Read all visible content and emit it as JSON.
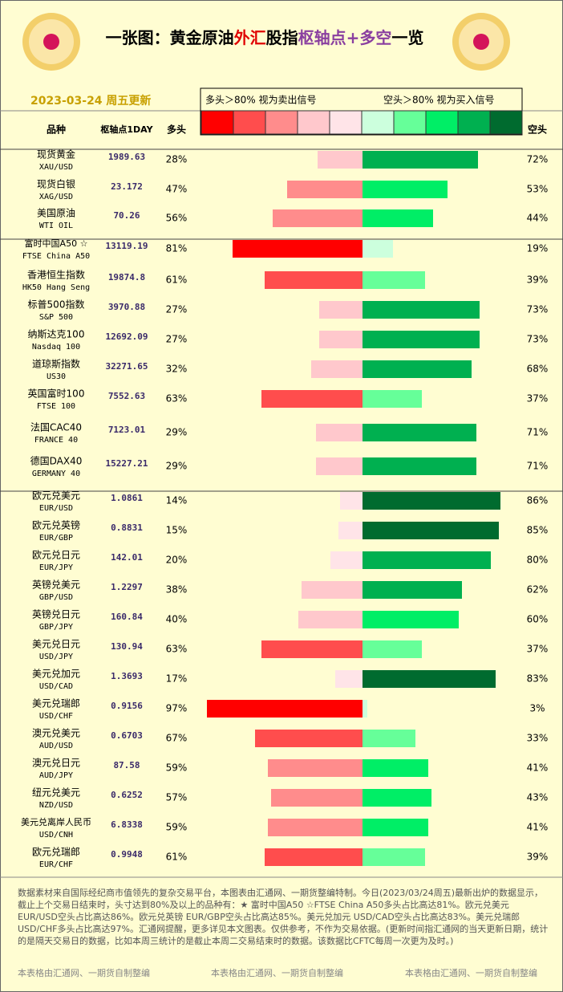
{
  "header": {
    "title_parts": [
      {
        "text": "一张图：黄金原油",
        "color": "#000000"
      },
      {
        "text": "外汇",
        "color": "#e00000"
      },
      {
        "text": "股指",
        "color": "#000000"
      },
      {
        "text": "枢轴点+多空",
        "color": "#8a3fa0"
      },
      {
        "text": "一览",
        "color": "#000000"
      }
    ],
    "date": "2023-03-24 周五更新"
  },
  "legend": {
    "long_text": "多头＞80% 视为卖出信号",
    "short_text": "空头＞80% 视为买入信号",
    "long_colors": [
      "#ffe4e8",
      "#ffc8cc",
      "#ff8c8c",
      "#ff4d4d",
      "#ff0000"
    ],
    "short_colors": [
      "#ccffdd",
      "#66ff99",
      "#00ee66",
      "#00b050",
      "#006b2f"
    ]
  },
  "columns": {
    "name": "品种",
    "pivot": "枢轴点1DAY",
    "long": "多头",
    "short": "空头"
  },
  "groups": [
    {
      "rows": [
        {
          "name": "现货黄金",
          "code": "XAU/USD",
          "pivot": "1989.63",
          "long": 28,
          "long_label": "28%",
          "short": 72,
          "short_label": "72%"
        },
        {
          "name": "现货白银",
          "code": "XAG/USD",
          "pivot": "23.172",
          "long": 47,
          "long_label": "47%",
          "short": 53,
          "short_label": "53%"
        },
        {
          "name": "美国原油",
          "code": "WTI OIL",
          "pivot": "70.26",
          "long": 56,
          "long_label": "56%",
          "short": 44,
          "short_label": "44%"
        }
      ]
    },
    {
      "rows": [
        {
          "name": "富时中国A50 ☆",
          "code": "FTSE China A50",
          "pivot": "13119.19",
          "long": 81,
          "long_label": "81%",
          "short": 19,
          "short_label": "19%"
        },
        {
          "name": "香港恒生指数",
          "code": "HK50 Hang Seng",
          "pivot": "19874.8",
          "long": 61,
          "long_label": "61%",
          "short": 39,
          "short_label": "39%"
        },
        {
          "name": "标普500指数",
          "code": "S&P 500",
          "pivot": "3970.88",
          "long": 27,
          "long_label": "27%",
          "short": 73,
          "short_label": "73%"
        },
        {
          "name": "纳斯达克100",
          "code": "Nasdaq 100",
          "pivot": "12692.09",
          "long": 27,
          "long_label": "27%",
          "short": 73,
          "short_label": "73%"
        },
        {
          "name": "道琼斯指数",
          "code": "US30",
          "pivot": "32271.65",
          "long": 32,
          "long_label": "32%",
          "short": 68,
          "short_label": "68%"
        },
        {
          "name": "英国富时100",
          "code": "FTSE 100",
          "pivot": "7552.63",
          "long": 63,
          "long_label": "63%",
          "short": 37,
          "short_label": "37%"
        },
        {
          "name": "法国CAC40",
          "code": "FRANCE 40",
          "pivot": "7123.01",
          "long": 29,
          "long_label": "29%",
          "short": 71,
          "short_label": "71%"
        },
        {
          "name": "德国DAX40",
          "code": "GERMANY 40",
          "pivot": "15227.21",
          "long": 29,
          "long_label": "29%",
          "short": 71,
          "short_label": "71%"
        }
      ]
    },
    {
      "rows": [
        {
          "name": "欧元兑美元",
          "code": "EUR/USD",
          "pivot": "1.0861",
          "long": 14,
          "long_label": "14%",
          "short": 86,
          "short_label": "86%"
        },
        {
          "name": "欧元兑英镑",
          "code": "EUR/GBP",
          "pivot": "0.8831",
          "long": 15,
          "long_label": "15%",
          "short": 85,
          "short_label": "85%"
        },
        {
          "name": "欧元兑日元",
          "code": "EUR/JPY",
          "pivot": "142.01",
          "long": 20,
          "long_label": "20%",
          "short": 80,
          "short_label": "80%"
        },
        {
          "name": "英镑兑美元",
          "code": "GBP/USD",
          "pivot": "1.2297",
          "long": 38,
          "long_label": "38%",
          "short": 62,
          "short_label": "62%"
        },
        {
          "name": "英镑兑日元",
          "code": "GBP/JPY",
          "pivot": "160.84",
          "long": 40,
          "long_label": "40%",
          "short": 60,
          "short_label": "60%"
        },
        {
          "name": "美元兑日元",
          "code": "USD/JPY",
          "pivot": "130.94",
          "long": 63,
          "long_label": "63%",
          "short": 37,
          "short_label": "37%"
        },
        {
          "name": "美元兑加元",
          "code": "USD/CAD",
          "pivot": "1.3693",
          "long": 17,
          "long_label": "17%",
          "short": 83,
          "short_label": "83%"
        },
        {
          "name": "美元兑瑞郎",
          "code": "USD/CHF",
          "pivot": "0.9156",
          "long": 97,
          "long_label": "97%",
          "short": 3,
          "short_label": "3%"
        },
        {
          "name": "澳元兑美元",
          "code": "AUD/USD",
          "pivot": "0.6703",
          "long": 67,
          "long_label": "67%",
          "short": 33,
          "short_label": "33%"
        },
        {
          "name": "澳元兑日元",
          "code": "AUD/JPY",
          "pivot": "87.58",
          "long": 59,
          "long_label": "59%",
          "short": 41,
          "short_label": "41%"
        },
        {
          "name": "纽元兑美元",
          "code": "NZD/USD",
          "pivot": "0.6252",
          "long": 57,
          "long_label": "57%",
          "short": 43,
          "short_label": "43%"
        },
        {
          "name": "美元兑离岸人民币",
          "code": "USD/CNH",
          "pivot": "6.8338",
          "long": 59,
          "long_label": "59%",
          "short": 41,
          "short_label": "41%"
        },
        {
          "name": "欧元兑瑞郎",
          "code": "EUR/CHF",
          "pivot": "0.9948",
          "long": 61,
          "long_label": "61%",
          "short": 39,
          "short_label": "39%"
        }
      ]
    }
  ],
  "footer": {
    "note": "数据素材来自国际经纪商市值领先的复杂交易平台，本图表由汇通网、一期货整编特制。今日(2023/03/24周五)最新出炉的数据显示，截止上个交易日结束时，头寸达到80%及以上的品种有：★ 富时中国A50 ☆FTSE China A50多头占比高达81%。欧元兑美元 EUR/USD空头占比高达86%。欧元兑英镑 EUR/GBP空头占比高达85%。美元兑加元 USD/CAD空头占比高达83%。美元兑瑞郎 USD/CHF多头占比高达97%。汇通网提醒，更多详见本文图表。仅供参考，不作为交易依据。(更新时间指汇通网的当天更新日期，统计的是隔天交易日的数据，比如本周三统计的是截止本周二交易结束时的数据。该数据比CFTC每周一次更为及时。)",
    "credits": [
      "本表格由汇通网、一期货自制整编",
      "本表格由汇通网、一期货自制整编",
      "本表格由汇通网、一期货自制整编"
    ]
  }
}
